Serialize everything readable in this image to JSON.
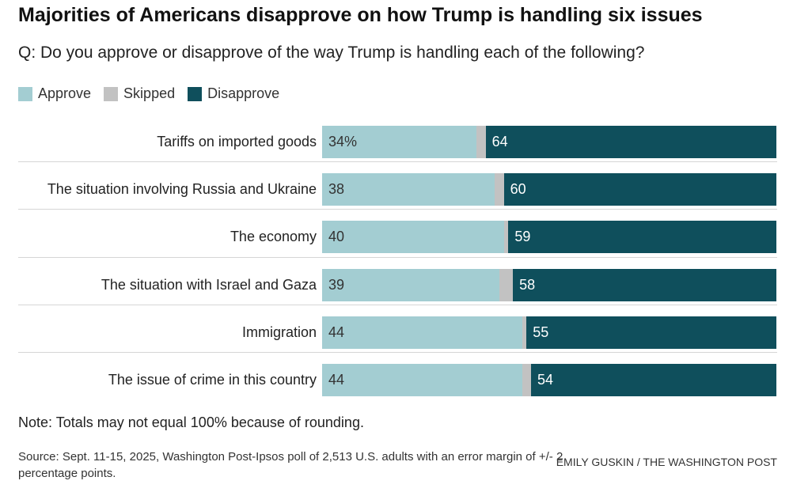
{
  "title": "Majorities of Americans disapprove on how Trump is handling six issues",
  "subtitle": "Q: Do you approve or disapprove of the way Trump is handling each of the following?",
  "colors": {
    "approve": "#a3cdd2",
    "skipped": "#c2c2c2",
    "disapprove": "#0f4f5c"
  },
  "legend": [
    {
      "label": "Approve",
      "color": "#a3cdd2"
    },
    {
      "label": "Skipped",
      "color": "#c2c2c2"
    },
    {
      "label": "Disapprove",
      "color": "#0f4f5c"
    }
  ],
  "chart_data": {
    "type": "bar",
    "stacked": true,
    "orientation": "horizontal",
    "categories": [
      "Tariffs on imported goods",
      "The situation involving Russia and Ukraine",
      "The economy",
      "The situation with Israel and Gaza",
      "Immigration",
      "The issue of crime in this country"
    ],
    "series": [
      {
        "name": "Approve",
        "values": [
          34,
          38,
          40,
          39,
          44,
          44
        ],
        "labels": [
          "34%",
          "38",
          "40",
          "39",
          "44",
          "44"
        ]
      },
      {
        "name": "Skipped",
        "values": [
          2,
          2,
          1,
          3,
          1,
          2
        ]
      },
      {
        "name": "Disapprove",
        "values": [
          64,
          60,
          59,
          58,
          55,
          54
        ],
        "labels": [
          "64",
          "60",
          "59",
          "58",
          "55",
          "54"
        ]
      }
    ],
    "xlim": [
      0,
      100
    ],
    "legend_position": "top-left",
    "grid": false
  },
  "note": "Note: Totals may not equal 100% because of rounding.",
  "source": "Source: Sept. 11-15, 2025, Washington Post-Ipsos poll of 2,513 U.S. adults with an error margin of +/- 2 percentage points.",
  "credit": "EMILY GUSKIN / THE WASHINGTON POST"
}
